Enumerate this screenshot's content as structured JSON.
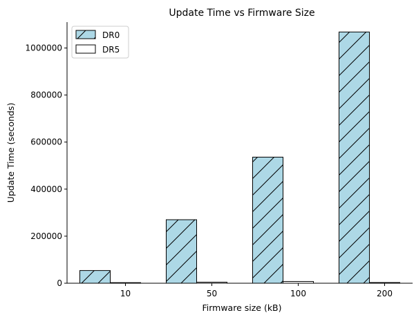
{
  "chart_data": {
    "type": "bar",
    "title": "Update Time vs Firmware Size",
    "xlabel": "Firmware size (kB)",
    "ylabel": "Update Time (seconds)",
    "categories": [
      "10",
      "50",
      "100",
      "200"
    ],
    "series": [
      {
        "name": "DR0",
        "values": [
          54000,
          270000,
          536000,
          1068000
        ],
        "color": "#add8e6",
        "hatch": "/"
      },
      {
        "name": "DR5",
        "values": [
          2500,
          4500,
          7500,
          3000
        ],
        "color": "#ffffff",
        "hatch": "none"
      }
    ],
    "ylim": [
      0,
      1110000
    ],
    "yticks": [
      0,
      200000,
      400000,
      600000,
      800000,
      1000000
    ],
    "ytick_labels": [
      "0",
      "200000",
      "400000",
      "600000",
      "800000",
      "1000000"
    ],
    "grid": false,
    "legend_position": "top-left"
  }
}
